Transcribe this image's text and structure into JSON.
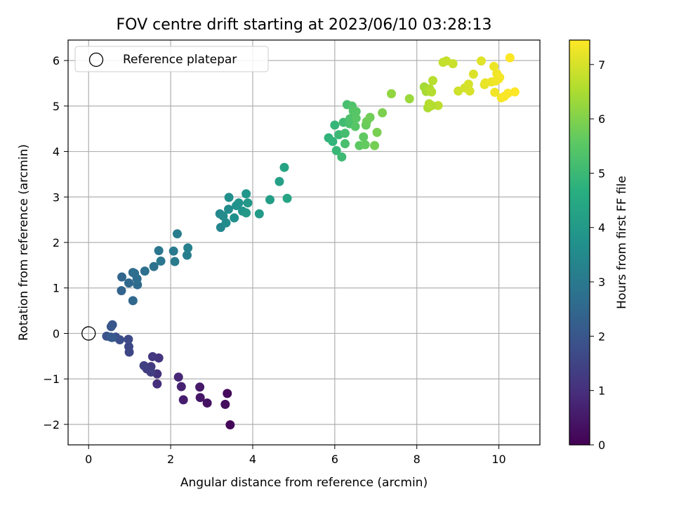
{
  "chart_data": {
    "type": "scatter",
    "title": "FOV centre drift starting at 2023/06/10 03:28:13",
    "xlabel": "Angular distance from reference (arcmin)",
    "ylabel": "Rotation from reference (arcmin)",
    "xlim": [
      -0.5,
      11.0
    ],
    "ylim": [
      -2.45,
      6.45
    ],
    "x_ticks": [
      0,
      2,
      4,
      6,
      8,
      10
    ],
    "x_tick_labels": [
      "0",
      "2",
      "4",
      "6",
      "8",
      "10"
    ],
    "y_ticks": [
      -2,
      -1,
      0,
      1,
      2,
      3,
      4,
      5,
      6
    ],
    "y_tick_labels": [
      "−2",
      "−1",
      "0",
      "1",
      "2",
      "3",
      "4",
      "5",
      "6"
    ],
    "grid": true,
    "legend": {
      "placement": "top-left",
      "entries": [
        "Reference platepar"
      ]
    },
    "reference_point": {
      "x": 0,
      "y": 0
    },
    "colorbar": {
      "label": "Hours from first FF file",
      "colormap": "viridis",
      "range": [
        0,
        7.45
      ],
      "ticks": [
        0,
        1,
        2,
        3,
        4,
        5,
        6,
        7
      ],
      "tick_labels": [
        "0",
        "1",
        "2",
        "3",
        "4",
        "5",
        "6",
        "7"
      ]
    },
    "series": [
      {
        "x": [
          3.45,
          3.38,
          3.33,
          2.89,
          2.72,
          2.71,
          2.31,
          2.26,
          2.19,
          1.67,
          1.67,
          1.71,
          1.56,
          1.52,
          1.42,
          1.52,
          1.35,
          0.99,
          0.98,
          0.97,
          0.76,
          0.66,
          0.58,
          0.55,
          0.44,
          0.54,
          0.57
        ],
        "y": [
          -2.01,
          -1.32,
          -1.56,
          -1.53,
          -1.41,
          -1.18,
          -1.46,
          -1.17,
          -0.96,
          -1.11,
          -0.89,
          -0.54,
          -0.51,
          -0.73,
          -0.78,
          -0.85,
          -0.71,
          -0.41,
          -0.29,
          -0.13,
          -0.14,
          -0.08,
          0.19,
          0.15,
          -0.06,
          -0.08,
          -0.09
        ],
        "hours": [
          0.1,
          0.2,
          0.25,
          0.35,
          0.45,
          0.5,
          0.6,
          0.7,
          0.8,
          1.0,
          1.05,
          1.1,
          1.2,
          1.25,
          1.3,
          1.35,
          1.4,
          1.55,
          1.6,
          1.65,
          1.75,
          1.85,
          1.95,
          2.0,
          1.9,
          2.05,
          2.1
        ]
      },
      {
        "x": [
          0.8,
          0.81,
          0.98,
          1.08,
          1.08,
          1.19,
          1.18,
          1.12,
          1.37,
          1.59,
          1.71,
          1.76,
          2.07,
          2.1,
          2.16,
          2.4,
          2.42
        ],
        "y": [
          0.94,
          1.24,
          1.11,
          1.34,
          0.72,
          1.07,
          1.2,
          1.32,
          1.37,
          1.47,
          1.82,
          1.59,
          1.81,
          1.58,
          2.19,
          1.72,
          1.88
        ],
        "hours": [
          2.4,
          2.45,
          2.5,
          2.55,
          2.5,
          2.6,
          2.65,
          2.7,
          2.75,
          2.8,
          2.9,
          2.95,
          3.0,
          3.05,
          3.1,
          3.15,
          3.2
        ]
      },
      {
        "x": [
          3.22,
          3.2,
          3.28,
          3.35,
          3.41,
          3.42,
          3.55,
          3.6,
          3.66,
          3.75,
          3.84,
          3.88,
          3.84,
          4.16,
          4.42,
          4.65,
          4.77,
          4.84
        ],
        "y": [
          2.33,
          2.63,
          2.58,
          2.43,
          2.73,
          2.99,
          2.54,
          2.81,
          2.87,
          2.69,
          3.07,
          2.87,
          2.65,
          2.63,
          2.94,
          3.34,
          3.65,
          2.97
        ],
        "hours": [
          3.4,
          3.45,
          3.5,
          3.55,
          3.6,
          3.65,
          3.7,
          3.75,
          3.8,
          3.85,
          3.9,
          3.95,
          3.95,
          4.0,
          4.1,
          4.2,
          4.3,
          4.35
        ]
      },
      {
        "x": [
          5.85,
          5.95,
          6.0,
          6.04,
          6.1,
          6.17,
          6.21,
          6.25,
          6.3,
          6.36,
          6.37,
          6.42,
          6.45,
          6.5,
          6.52,
          6.6,
          6.7,
          6.74,
          6.76,
          6.78,
          6.86,
          6.97,
          7.03,
          7.16,
          6.52,
          6.25
        ],
        "y": [
          4.3,
          4.22,
          4.58,
          4.02,
          4.37,
          3.88,
          4.64,
          4.4,
          5.03,
          4.61,
          4.72,
          5.0,
          4.89,
          4.55,
          4.73,
          4.13,
          4.32,
          4.15,
          4.58,
          4.66,
          4.75,
          4.13,
          4.42,
          4.85,
          4.88,
          4.17
        ],
        "hours": [
          4.8,
          4.85,
          4.9,
          4.95,
          5.0,
          5.05,
          5.1,
          5.15,
          5.2,
          5.25,
          5.3,
          5.35,
          5.4,
          5.45,
          5.5,
          5.55,
          5.6,
          5.65,
          5.7,
          5.75,
          5.8,
          5.85,
          5.9,
          5.95,
          5.45,
          5.2
        ]
      },
      {
        "x": [
          7.38,
          7.82,
          8.18,
          8.23,
          8.27,
          8.31,
          8.36,
          8.39,
          8.52,
          8.64,
          8.72,
          8.88,
          9.01,
          9.17,
          9.26,
          9.29,
          9.38,
          8.37,
          8.3
        ],
        "y": [
          5.27,
          5.16,
          5.42,
          5.32,
          4.96,
          5.38,
          5.31,
          5.56,
          5.01,
          5.96,
          5.99,
          5.93,
          5.33,
          5.4,
          5.48,
          5.33,
          5.7,
          5.01,
          5.05
        ],
        "hours": [
          6.2,
          6.3,
          6.4,
          6.45,
          6.5,
          6.55,
          6.6,
          6.65,
          6.7,
          6.75,
          6.8,
          6.85,
          6.9,
          6.95,
          7.0,
          7.0,
          7.05,
          6.6,
          6.6
        ]
      },
      {
        "x": [
          9.57,
          9.65,
          9.67,
          9.88,
          9.9,
          9.95,
          9.99,
          10.02,
          10.06,
          10.13,
          10.22,
          10.27,
          10.39,
          9.82,
          9.92
        ],
        "y": [
          5.99,
          5.47,
          5.51,
          5.87,
          5.3,
          5.71,
          5.59,
          5.63,
          5.18,
          5.21,
          5.28,
          6.06,
          5.31,
          5.53,
          5.55
        ],
        "hours": [
          7.1,
          7.15,
          7.2,
          7.25,
          7.3,
          7.3,
          7.35,
          7.35,
          7.35,
          7.4,
          7.4,
          7.45,
          7.45,
          7.25,
          7.3
        ]
      }
    ]
  }
}
